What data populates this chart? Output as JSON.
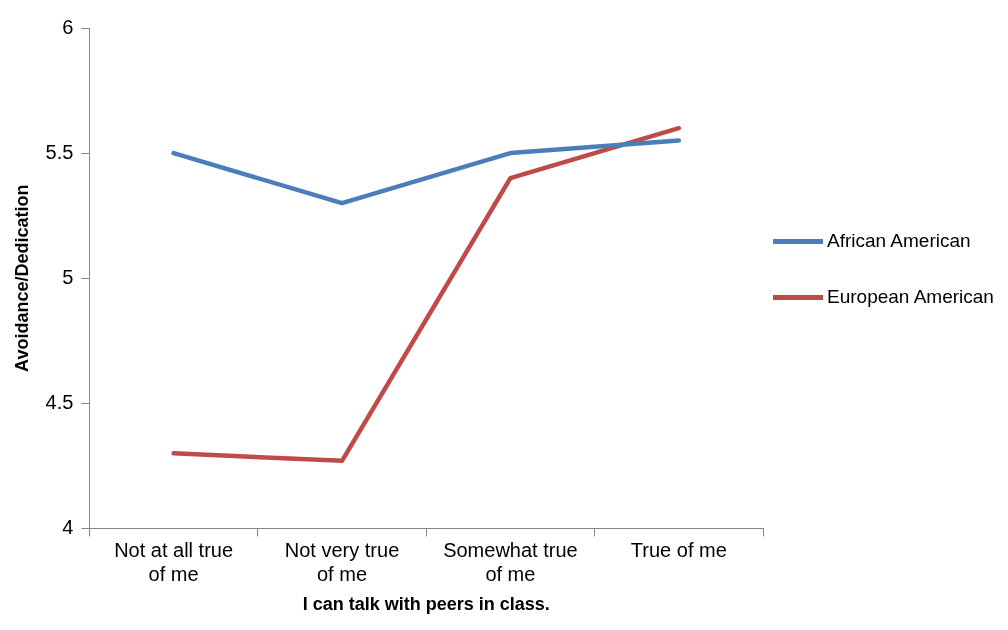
{
  "chart_data": {
    "type": "line",
    "xlabel": "I can talk with peers in class.",
    "ylabel": "Avoidance/Dedication",
    "categories": [
      "Not at all true of me",
      "Not very true of me",
      "Somewhat true of me",
      "True of me"
    ],
    "series": [
      {
        "name": "African American",
        "color": "#4a7ebb",
        "values": [
          5.5,
          5.3,
          5.5,
          5.55
        ]
      },
      {
        "name": "European American",
        "color": "#be4b48",
        "values": [
          4.3,
          4.27,
          5.4,
          5.6
        ]
      }
    ],
    "ylim": [
      4,
      6
    ],
    "yticks": [
      4,
      4.5,
      5,
      5.5,
      6
    ],
    "grid": false,
    "legend": "right",
    "marker": "none",
    "line_style": "solid"
  }
}
